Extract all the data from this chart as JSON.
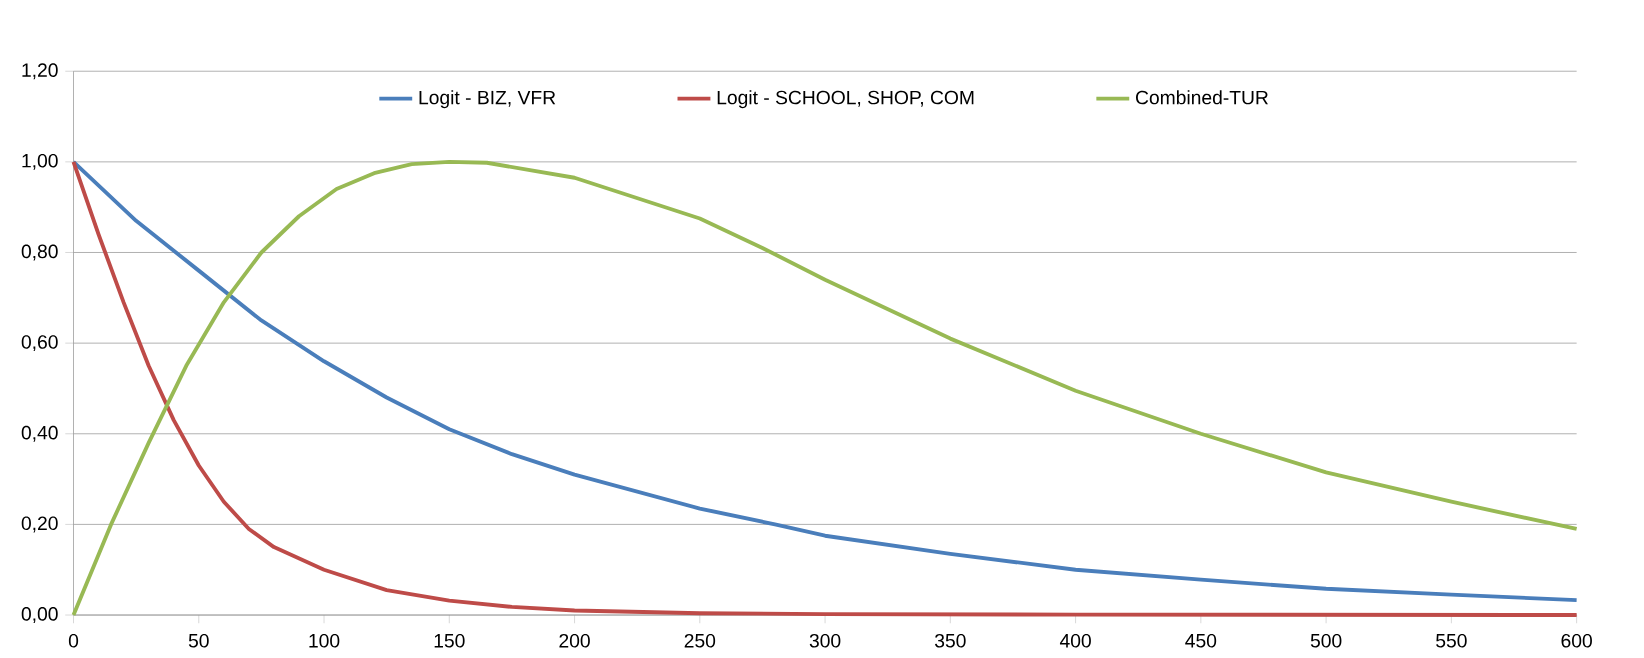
{
  "chart_data": {
    "type": "line",
    "xlim": [
      0,
      600
    ],
    "ylim": [
      0,
      1.2
    ],
    "xticks": [
      0,
      50,
      100,
      150,
      200,
      250,
      300,
      350,
      400,
      450,
      500,
      550,
      600
    ],
    "yticks": [
      {
        "value": 0,
        "label": "0,00"
      },
      {
        "value": 0.2,
        "label": "0,20"
      },
      {
        "value": 0.4,
        "label": "0,40"
      },
      {
        "value": 0.6,
        "label": "0,60"
      },
      {
        "value": 0.8,
        "label": "0,80"
      },
      {
        "value": 1.0,
        "label": "1,00"
      },
      {
        "value": 1.2,
        "label": "1,20"
      }
    ],
    "grid": "y",
    "legend": "top",
    "marker": "none",
    "line_style": "solid",
    "series": [
      {
        "name": "Logit - BIZ, VFR",
        "color": "#4a7ebb",
        "x": [
          0,
          25,
          50,
          75,
          100,
          125,
          150,
          175,
          200,
          250,
          280,
          300,
          350,
          400,
          450,
          500,
          550,
          600
        ],
        "values": [
          1.0,
          0.87,
          0.76,
          0.65,
          0.56,
          0.48,
          0.41,
          0.355,
          0.31,
          0.235,
          0.2,
          0.175,
          0.135,
          0.1,
          0.078,
          0.058,
          0.045,
          0.033
        ]
      },
      {
        "name": "Logit - SCHOOL, SHOP, COM",
        "color": "#be4b48",
        "x": [
          0,
          10,
          20,
          30,
          40,
          50,
          60,
          70,
          80,
          100,
          125,
          150,
          175,
          200,
          250,
          300,
          400,
          600
        ],
        "values": [
          1.0,
          0.84,
          0.69,
          0.55,
          0.43,
          0.33,
          0.25,
          0.19,
          0.15,
          0.1,
          0.055,
          0.032,
          0.018,
          0.01,
          0.004,
          0.002,
          0.001,
          0.0
        ]
      },
      {
        "name": "Combined-TUR",
        "color": "#98b954",
        "x": [
          0,
          15,
          30,
          45,
          60,
          75,
          90,
          105,
          120,
          135,
          150,
          165,
          200,
          250,
          275,
          300,
          350,
          400,
          450,
          500,
          550,
          600
        ],
        "values": [
          0,
          0.2,
          0.38,
          0.55,
          0.69,
          0.8,
          0.88,
          0.94,
          0.975,
          0.995,
          1.0,
          0.998,
          0.965,
          0.875,
          0.81,
          0.74,
          0.61,
          0.495,
          0.4,
          0.315,
          0.25,
          0.19
        ]
      }
    ]
  }
}
